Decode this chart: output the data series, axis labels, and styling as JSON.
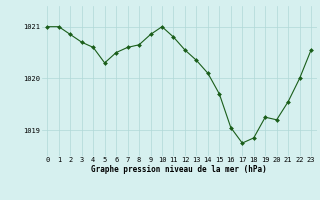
{
  "x": [
    0,
    1,
    2,
    3,
    4,
    5,
    6,
    7,
    8,
    9,
    10,
    11,
    12,
    13,
    14,
    15,
    16,
    17,
    18,
    19,
    20,
    21,
    22,
    23
  ],
  "y": [
    1021.0,
    1021.0,
    1020.85,
    1020.7,
    1020.6,
    1020.3,
    1020.5,
    1020.6,
    1020.65,
    1020.85,
    1021.0,
    1020.8,
    1020.55,
    1020.35,
    1020.1,
    1019.7,
    1019.05,
    1018.75,
    1018.85,
    1019.25,
    1019.2,
    1019.55,
    1020.0,
    1020.55
  ],
  "line_color": "#1a5e1a",
  "marker": "D",
  "marker_size": 2.0,
  "bg_color": "#d6f0ef",
  "grid_color": "#b0d8d8",
  "ylabel_left": [
    "1019",
    "1020",
    "1021"
  ],
  "yticks": [
    1019.0,
    1020.0,
    1021.0
  ],
  "ylim": [
    1018.5,
    1021.4
  ],
  "xlim": [
    -0.5,
    23.5
  ],
  "xlabel_text": "Graphe pression niveau de la mer (hPa)",
  "axis_label_fontsize": 5.5,
  "tick_fontsize": 5.0
}
